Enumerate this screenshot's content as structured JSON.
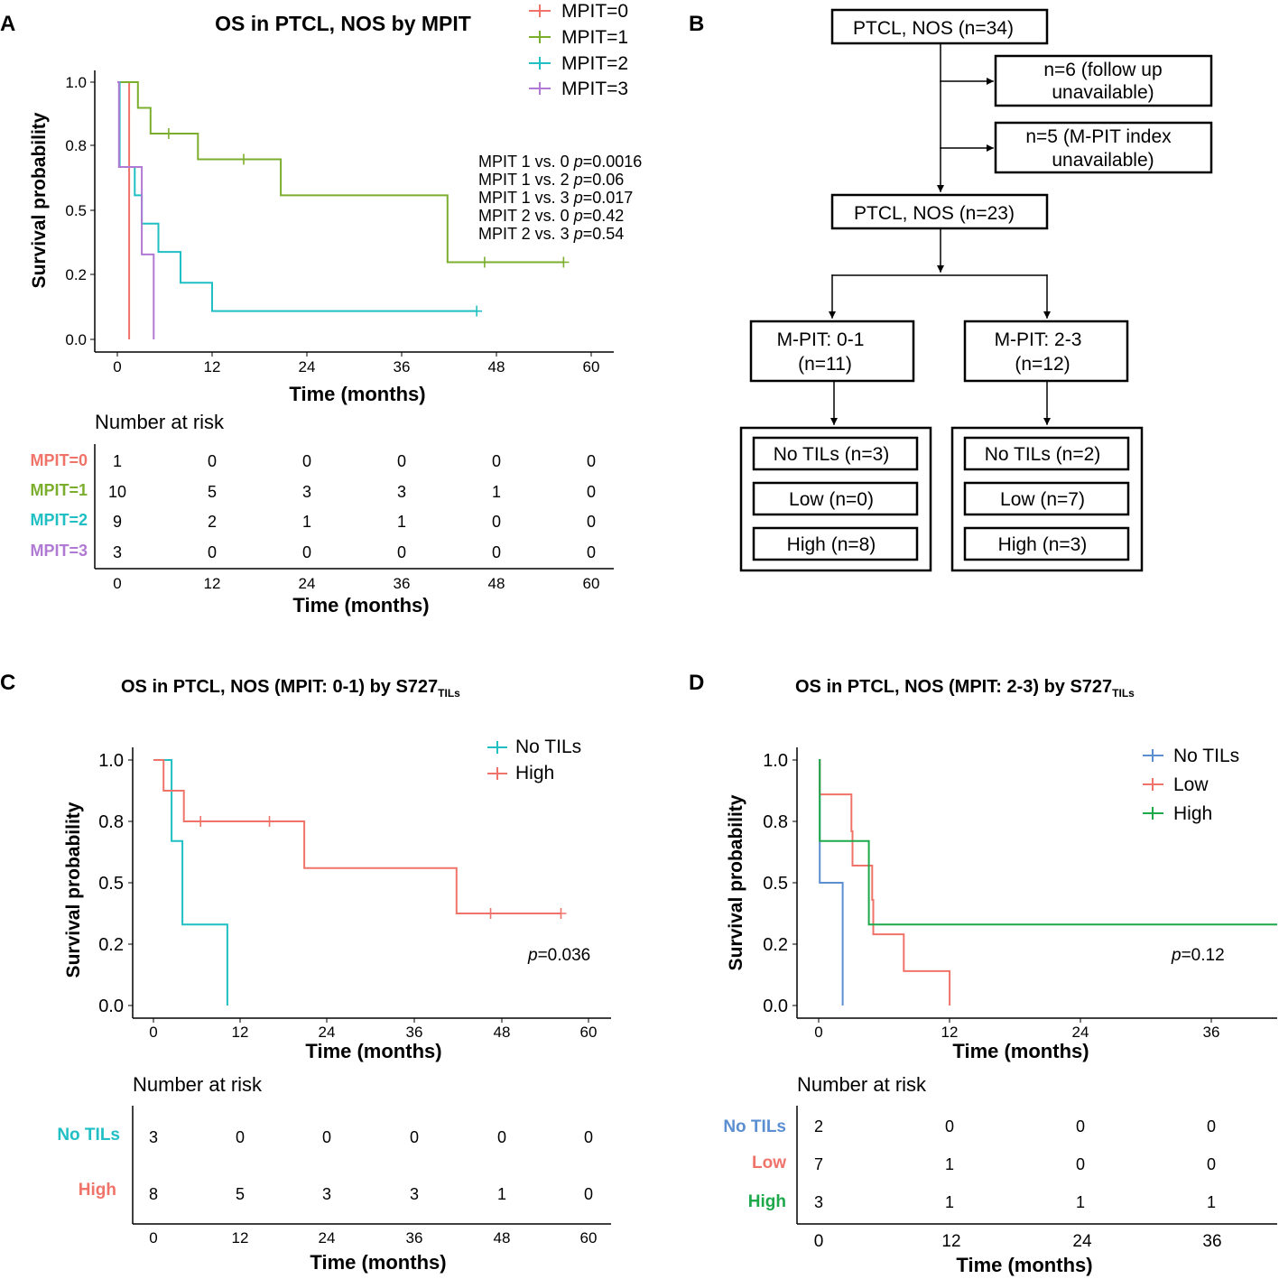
{
  "panels": {
    "a": "A",
    "b": "B",
    "c": "C",
    "d": "D"
  },
  "common": {
    "survival_label": "Survival probability",
    "time_label": "Time (months)",
    "risk_title": "Number at risk"
  },
  "colors": {
    "red": "#f0736a",
    "green": "#7cae2e",
    "cyan": "#1fbfc4",
    "purple": "#b07ad4",
    "blue": "#5b8fd1",
    "dgreen": "#1da84a"
  },
  "chart_data": [
    {
      "id": "A",
      "type": "line",
      "title": "OS in PTCL, NOS by MPIT",
      "xlabel": "Time (months)",
      "ylabel": "Survival probability",
      "xlim": [
        0,
        60
      ],
      "ylim": [
        0,
        1
      ],
      "x_ticks": [
        "0",
        "12",
        "24",
        "36",
        "48",
        "60"
      ],
      "y_ticks": [
        "0.0",
        "0.2",
        "0.5",
        "0.8",
        "1.0"
      ],
      "legend": [
        "MPIT=0",
        "MPIT=1",
        "MPIT=2",
        "MPIT=3"
      ],
      "series": [
        {
          "name": "MPIT=0",
          "color": "#f0736a",
          "steps": [
            [
              0,
              1.0
            ],
            [
              1.5,
              0.0
            ]
          ],
          "end": 1.5,
          "censors": []
        },
        {
          "name": "MPIT=1",
          "color": "#7cae2e",
          "steps": [
            [
              0,
              1.0
            ],
            [
              2.5,
              1.0
            ],
            [
              2.6,
              0.9
            ],
            [
              4.2,
              0.8
            ],
            [
              10.2,
              0.7
            ],
            [
              20.7,
              0.56
            ],
            [
              41.8,
              0.3
            ]
          ],
          "end": 56.5,
          "censors": [
            6.5,
            16,
            46.5,
            56.5
          ]
        },
        {
          "name": "MPIT=2",
          "color": "#1fbfc4",
          "steps": [
            [
              0,
              1.0
            ],
            [
              0.3,
              0.67
            ],
            [
              2.2,
              0.56
            ],
            [
              3.1,
              0.45
            ],
            [
              5.2,
              0.34
            ],
            [
              8,
              0.22
            ],
            [
              12,
              0.11
            ]
          ],
          "end": 45.5,
          "censors": [
            45.5
          ]
        },
        {
          "name": "MPIT=3",
          "color": "#b07ad4",
          "steps": [
            [
              0,
              1.0
            ],
            [
              0.2,
              0.67
            ],
            [
              3.1,
              0.33
            ],
            [
              4.6,
              0.0
            ]
          ],
          "end": 4.6,
          "censors": []
        }
      ],
      "annotations": [
        {
          "text": "MPIT 1 vs. 0 ",
          "p": "p",
          "value": "=0.0016"
        },
        {
          "text": "MPIT 1 vs. 2 ",
          "p": "p",
          "value": "=0.06"
        },
        {
          "text": "MPIT 1 vs. 3 ",
          "p": "p",
          "value": "=0.017"
        },
        {
          "text": "MPIT 2 vs. 0 ",
          "p": "p",
          "value": "=0.42"
        },
        {
          "text": "MPIT 2 vs. 3 ",
          "p": "p",
          "value": "=0.54"
        }
      ],
      "risk_table": {
        "rows": [
          {
            "label": "MPIT=0",
            "color": "#f0736a",
            "values": [
              "1",
              "0",
              "0",
              "0",
              "0",
              "0"
            ]
          },
          {
            "label": "MPIT=1",
            "color": "#7cae2e",
            "values": [
              "10",
              "5",
              "3",
              "3",
              "1",
              "0"
            ]
          },
          {
            "label": "MPIT=2",
            "color": "#1fbfc4",
            "values": [
              "9",
              "2",
              "1",
              "1",
              "0",
              "0"
            ]
          },
          {
            "label": "MPIT=3",
            "color": "#b07ad4",
            "values": [
              "3",
              "0",
              "0",
              "0",
              "0",
              "0"
            ]
          }
        ]
      }
    },
    {
      "id": "C",
      "type": "line",
      "title": "OS in PTCL, NOS (MPIT: 0-1) by S727",
      "title_sub": "TILs",
      "xlabel": "Time (months)",
      "ylabel": "Survival probability",
      "xlim": [
        0,
        60
      ],
      "ylim": [
        0,
        1
      ],
      "x_ticks": [
        "0",
        "12",
        "24",
        "36",
        "48",
        "60"
      ],
      "y_ticks": [
        "0.0",
        "0.2",
        "0.5",
        "0.8",
        "1.0"
      ],
      "legend": [
        "No TILs",
        "High"
      ],
      "pvalue": {
        "p": "p",
        "value": "=0.036"
      },
      "series": [
        {
          "name": "No TILs",
          "color": "#1fbfc4",
          "steps": [
            [
              0,
              1.0
            ],
            [
              2.5,
              0.67
            ],
            [
              4,
              0.33
            ],
            [
              10.2,
              0.0
            ]
          ],
          "end": 10.2,
          "censors": []
        },
        {
          "name": "High",
          "color": "#f0736a",
          "steps": [
            [
              0,
              1.0
            ],
            [
              1.4,
              0.875
            ],
            [
              4.2,
              0.75
            ],
            [
              20.8,
              0.56
            ],
            [
              41.8,
              0.375
            ]
          ],
          "end": 56.2,
          "censors": [
            6.5,
            16,
            46.5,
            56.2
          ]
        }
      ],
      "risk_table": {
        "rows": [
          {
            "label": "No TILs",
            "color": "#1fbfc4",
            "values": [
              "3",
              "0",
              "0",
              "0",
              "0",
              "0"
            ]
          },
          {
            "label": "High",
            "color": "#f0736a",
            "values": [
              "8",
              "5",
              "3",
              "3",
              "1",
              "0"
            ]
          }
        ]
      }
    },
    {
      "id": "D",
      "type": "line",
      "title": "OS in PTCL, NOS (MPIT: 2-3) by S727",
      "title_sub": "TILs",
      "xlabel": "Time (months)",
      "ylabel": "Survival probability",
      "xlim": [
        0,
        42
      ],
      "ylim": [
        0,
        1
      ],
      "x_tick_values": [
        0,
        12,
        24,
        36
      ],
      "x_ticks": [
        "0",
        "12",
        "24",
        "36"
      ],
      "y_ticks": [
        "0.0",
        "0.2",
        "0.5",
        "0.8",
        "1.0"
      ],
      "legend": [
        "No TILs",
        "Low",
        "High"
      ],
      "pvalue": {
        "p": "p",
        "value": "=0.12"
      },
      "series": [
        {
          "name": "No TILs",
          "color": "#5b8fd1",
          "steps": [
            [
              0,
              1.0
            ],
            [
              0.1,
              0.5
            ],
            [
              2.2,
              0.0
            ]
          ],
          "end": 2.2,
          "censors": []
        },
        {
          "name": "Low",
          "color": "#f0736a",
          "steps": [
            [
              0,
              1.0
            ],
            [
              0.1,
              0.86
            ],
            [
              3,
              0.71
            ],
            [
              3.1,
              0.57
            ],
            [
              4.9,
              0.43
            ],
            [
              5,
              0.29
            ],
            [
              7.8,
              0.14
            ],
            [
              12,
              0.0
            ]
          ],
          "end": 12,
          "censors": []
        },
        {
          "name": "High",
          "color": "#1da84a",
          "steps": [
            [
              0,
              1.0
            ],
            [
              0.1,
              0.67
            ],
            [
              4.6,
              0.33
            ]
          ],
          "end": 42,
          "censors": []
        }
      ],
      "risk_table": {
        "rows": [
          {
            "label": "No TILs",
            "color": "#5b8fd1",
            "values": [
              "2",
              "0",
              "0",
              "0"
            ]
          },
          {
            "label": "Low",
            "color": "#f0736a",
            "values": [
              "7",
              "1",
              "0",
              "0"
            ]
          },
          {
            "label": "High",
            "color": "#1da84a",
            "values": [
              "3",
              "1",
              "1",
              "1"
            ]
          }
        ]
      }
    }
  ],
  "flowchart": {
    "root": "PTCL, NOS (n=34)",
    "excl1_line1": "n=6 (follow up",
    "excl1_line2": "unavailable)",
    "excl2_line1": "n=5 (M-PIT index",
    "excl2_line2": "unavailable)",
    "mid": "PTCL, NOS (n=23)",
    "left_line1": "M-PIT: 0-1",
    "left_line2": "(n=11)",
    "right_line1": "M-PIT: 2-3",
    "right_line2": "(n=12)",
    "left_groups": [
      "No TILs (n=3)",
      "Low (n=0)",
      "High (n=8)"
    ],
    "right_groups": [
      "No TILs (n=2)",
      "Low (n=7)",
      "High (n=3)"
    ]
  }
}
